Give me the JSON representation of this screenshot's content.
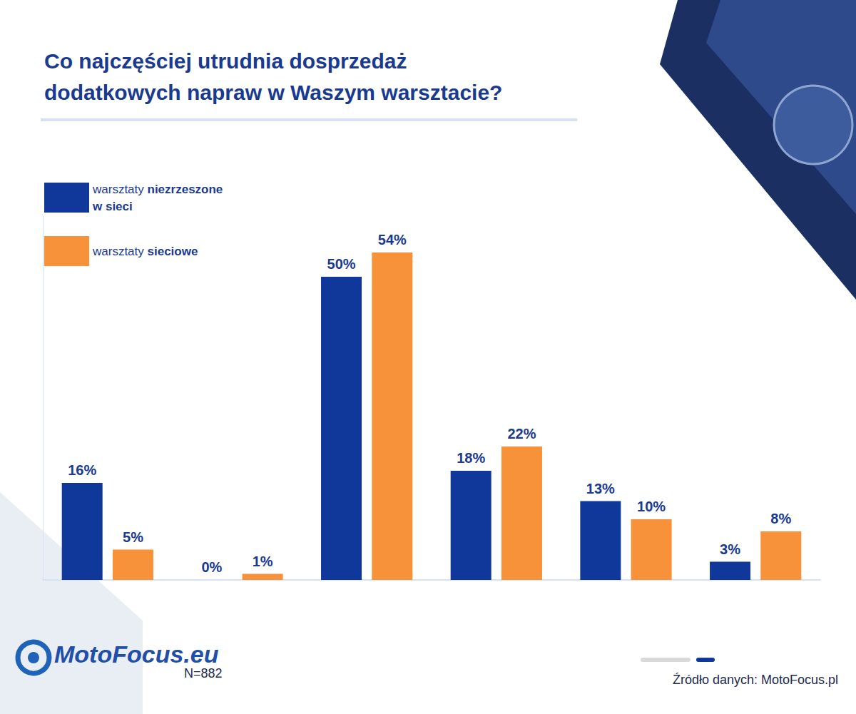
{
  "chart_data": {
    "type": "bar",
    "title": "Co najczęściej utrudnia dosprzedaż dodatkowych napraw w Waszym warsztacie?",
    "categories": [
      null,
      null,
      null,
      null,
      null,
      null
    ],
    "series": [
      {
        "name": "warsztaty niezrzeszone w sieci",
        "color": "#10389a",
        "values": [
          16,
          0,
          50,
          18,
          13,
          3
        ],
        "value_labels": [
          "16%",
          "0%",
          "50%",
          "18%",
          "13%",
          "3%"
        ]
      },
      {
        "name": "warsztaty sieciowe",
        "color": "#f7913a",
        "values": [
          5,
          1,
          54,
          22,
          10,
          8
        ],
        "value_labels": [
          "5%",
          "1%",
          "54%",
          "22%",
          "10%",
          "8%"
        ]
      }
    ],
    "ylim": [
      0,
      60
    ],
    "grid": false,
    "legend": "upper left",
    "data_labels": true,
    "tick_labels": false,
    "annotations": [
      "N=882",
      "Źródło danych: MotoFocus.pl",
      "MotoFocus.eu"
    ]
  }
}
